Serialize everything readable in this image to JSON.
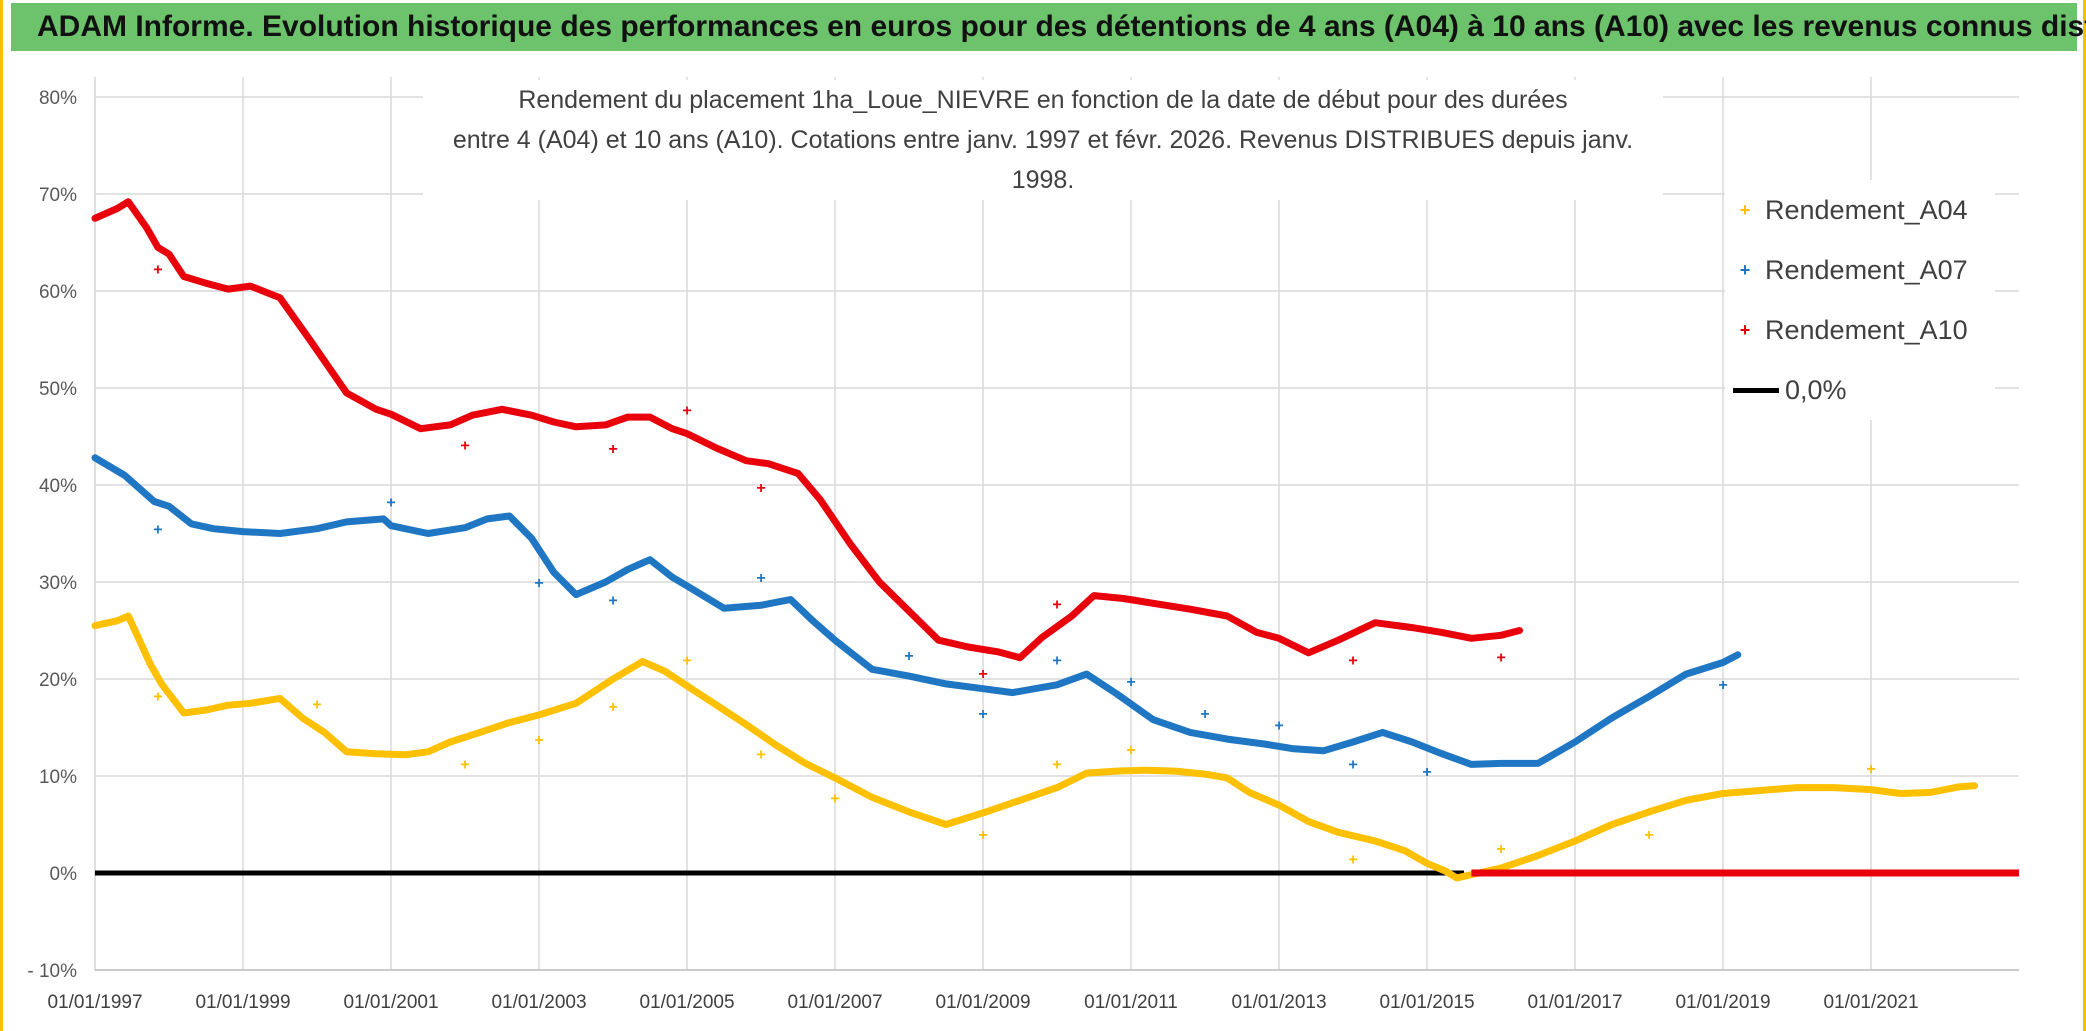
{
  "banner": {
    "title": "ADAM Informe. Evolution historique des performances en euros pour des détentions de 4 ans (A04) à 10 ans (A10) avec les revenus connus distribués"
  },
  "colors": {
    "banner": "#6cc36c",
    "A04": "#ffc000",
    "A07": "#1f77c4",
    "A10": "#e8000b",
    "zero": "#000000",
    "border": "#f2c200"
  },
  "chart_data": {
    "type": "line",
    "title_line1": "Rendement du placement 1ha_Loue_NIEVRE en fonction de la date de début pour des durées",
    "title_line2": "entre 4 (A04) et 10 ans (A10). Cotations entre janv. 1997 et févr. 2026. Revenus DISTRIBUES depuis janv. 1998.",
    "xlabel": "",
    "ylabel": "",
    "xlim": [
      1997.0,
      2023.0
    ],
    "ylim": [
      -10,
      80
    ],
    "y_ticks": [
      -10,
      0,
      10,
      20,
      30,
      40,
      50,
      60,
      70,
      80
    ],
    "y_tick_labels": [
      "- 10%",
      "0%",
      "10%",
      "20%",
      "30%",
      "40%",
      "50%",
      "60%",
      "70%",
      "80%"
    ],
    "x_ticks": [
      1997,
      1999,
      2001,
      2003,
      2005,
      2007,
      2009,
      2011,
      2013,
      2015,
      2017,
      2019,
      2021
    ],
    "x_tick_labels": [
      "01/01/1997",
      "01/01/1999",
      "01/01/2001",
      "01/01/2003",
      "01/01/2005",
      "01/01/2007",
      "01/01/2009",
      "01/01/2011",
      "01/01/2013",
      "01/01/2015",
      "01/01/2017",
      "01/01/2019",
      "01/01/2021"
    ],
    "legend": {
      "A04": "Rendement_A04",
      "A07": "Rendement_A07",
      "A10": "Rendement_A10",
      "zero": "0,0%"
    },
    "legend_position": "top-right",
    "series": [
      {
        "key": "A04",
        "name": "Rendement_A04",
        "points": [
          [
            1997.0,
            25.5
          ],
          [
            1997.3,
            26.0
          ],
          [
            1997.45,
            26.5
          ],
          [
            1997.6,
            24.0
          ],
          [
            1997.75,
            21.5
          ],
          [
            1997.9,
            19.5
          ],
          [
            1998.2,
            16.5
          ],
          [
            1998.5,
            16.8
          ],
          [
            1998.8,
            17.3
          ],
          [
            1999.1,
            17.5
          ],
          [
            1999.5,
            18.0
          ],
          [
            1999.8,
            16.0
          ],
          [
            2000.1,
            14.5
          ],
          [
            2000.4,
            12.5
          ],
          [
            2000.8,
            12.3
          ],
          [
            2001.2,
            12.2
          ],
          [
            2001.5,
            12.5
          ],
          [
            2001.8,
            13.5
          ],
          [
            2002.2,
            14.5
          ],
          [
            2002.6,
            15.5
          ],
          [
            2003.0,
            16.3
          ],
          [
            2003.5,
            17.5
          ],
          [
            2004.0,
            20.0
          ],
          [
            2004.4,
            21.8
          ],
          [
            2004.7,
            20.8
          ],
          [
            2005.0,
            19.3
          ],
          [
            2005.4,
            17.3
          ],
          [
            2005.8,
            15.3
          ],
          [
            2006.2,
            13.2
          ],
          [
            2006.6,
            11.3
          ],
          [
            2007.0,
            9.8
          ],
          [
            2007.5,
            7.8
          ],
          [
            2008.0,
            6.3
          ],
          [
            2008.5,
            5.0
          ],
          [
            2009.0,
            6.2
          ],
          [
            2009.5,
            7.5
          ],
          [
            2010.0,
            8.8
          ],
          [
            2010.4,
            10.3
          ],
          [
            2010.8,
            10.5
          ],
          [
            2011.2,
            10.6
          ],
          [
            2011.6,
            10.5
          ],
          [
            2012.0,
            10.2
          ],
          [
            2012.3,
            9.8
          ],
          [
            2012.6,
            8.3
          ],
          [
            2013.0,
            7.0
          ],
          [
            2013.4,
            5.3
          ],
          [
            2013.8,
            4.2
          ],
          [
            2014.3,
            3.3
          ],
          [
            2014.7,
            2.3
          ],
          [
            2015.0,
            1.0
          ],
          [
            2015.25,
            0.2
          ],
          [
            2015.4,
            -0.5
          ],
          [
            2015.7,
            0.0
          ],
          [
            2016.0,
            0.5
          ],
          [
            2016.5,
            1.8
          ],
          [
            2017.0,
            3.3
          ],
          [
            2017.5,
            5.0
          ],
          [
            2018.0,
            6.3
          ],
          [
            2018.5,
            7.5
          ],
          [
            2019.0,
            8.2
          ],
          [
            2019.5,
            8.5
          ],
          [
            2020.0,
            8.8
          ],
          [
            2020.5,
            8.8
          ],
          [
            2021.0,
            8.6
          ],
          [
            2021.4,
            8.2
          ],
          [
            2021.8,
            8.3
          ],
          [
            2022.2,
            8.9
          ],
          [
            2022.4,
            9.0
          ]
        ],
        "outliers": [
          [
            1997.85,
            18.3
          ],
          [
            2000.0,
            17.5
          ],
          [
            2002.0,
            11.3
          ],
          [
            2003.0,
            13.8
          ],
          [
            2004.0,
            17.2
          ],
          [
            2005.0,
            22.0
          ],
          [
            2006.0,
            12.3
          ],
          [
            2007.0,
            7.8
          ],
          [
            2009.0,
            4.0
          ],
          [
            2010.0,
            11.3
          ],
          [
            2011.0,
            12.8
          ],
          [
            2014.0,
            1.5
          ],
          [
            2016.0,
            2.6
          ],
          [
            2018.0,
            4.0
          ],
          [
            2021.0,
            10.8
          ]
        ]
      },
      {
        "key": "A07",
        "name": "Rendement_A07",
        "points": [
          [
            1997.0,
            42.8
          ],
          [
            1997.4,
            41.0
          ],
          [
            1997.8,
            38.3
          ],
          [
            1998.0,
            37.8
          ],
          [
            1998.3,
            36.0
          ],
          [
            1998.6,
            35.5
          ],
          [
            1999.0,
            35.2
          ],
          [
            1999.5,
            35.0
          ],
          [
            2000.0,
            35.5
          ],
          [
            2000.4,
            36.2
          ],
          [
            2000.9,
            36.5
          ],
          [
            2001.0,
            35.8
          ],
          [
            2001.5,
            35.0
          ],
          [
            2002.0,
            35.6
          ],
          [
            2002.3,
            36.5
          ],
          [
            2002.6,
            36.8
          ],
          [
            2002.9,
            34.5
          ],
          [
            2003.2,
            31.0
          ],
          [
            2003.5,
            28.7
          ],
          [
            2003.9,
            30.0
          ],
          [
            2004.2,
            31.3
          ],
          [
            2004.5,
            32.3
          ],
          [
            2004.8,
            30.5
          ],
          [
            2005.0,
            29.6
          ],
          [
            2005.5,
            27.3
          ],
          [
            2006.0,
            27.6
          ],
          [
            2006.4,
            28.2
          ],
          [
            2006.7,
            26.0
          ],
          [
            2007.0,
            24.0
          ],
          [
            2007.5,
            21.0
          ],
          [
            2008.0,
            20.3
          ],
          [
            2008.5,
            19.5
          ],
          [
            2009.0,
            19.0
          ],
          [
            2009.4,
            18.6
          ],
          [
            2010.0,
            19.4
          ],
          [
            2010.4,
            20.5
          ],
          [
            2010.8,
            18.5
          ],
          [
            2011.3,
            15.8
          ],
          [
            2011.8,
            14.5
          ],
          [
            2012.3,
            13.8
          ],
          [
            2012.8,
            13.3
          ],
          [
            2013.2,
            12.8
          ],
          [
            2013.6,
            12.6
          ],
          [
            2014.0,
            13.5
          ],
          [
            2014.4,
            14.5
          ],
          [
            2014.8,
            13.5
          ],
          [
            2015.2,
            12.3
          ],
          [
            2015.6,
            11.2
          ],
          [
            2016.0,
            11.3
          ],
          [
            2016.5,
            11.3
          ],
          [
            2017.0,
            13.5
          ],
          [
            2017.5,
            16.0
          ],
          [
            2018.0,
            18.2
          ],
          [
            2018.5,
            20.5
          ],
          [
            2019.0,
            21.7
          ],
          [
            2019.2,
            22.5
          ]
        ],
        "outliers": [
          [
            1997.85,
            35.5
          ],
          [
            2001.0,
            38.3
          ],
          [
            2003.0,
            30.0
          ],
          [
            2004.0,
            28.2
          ],
          [
            2006.0,
            30.5
          ],
          [
            2008.0,
            22.5
          ],
          [
            2009.0,
            16.5
          ],
          [
            2010.0,
            22.0
          ],
          [
            2011.0,
            19.8
          ],
          [
            2012.0,
            16.5
          ],
          [
            2013.0,
            15.3
          ],
          [
            2014.0,
            11.3
          ],
          [
            2015.0,
            10.5
          ],
          [
            2019.0,
            19.5
          ]
        ]
      },
      {
        "key": "A10",
        "name": "Rendement_A10",
        "points": [
          [
            1997.0,
            67.5
          ],
          [
            1997.3,
            68.5
          ],
          [
            1997.45,
            69.2
          ],
          [
            1997.7,
            66.5
          ],
          [
            1997.85,
            64.5
          ],
          [
            1998.0,
            63.8
          ],
          [
            1998.2,
            61.5
          ],
          [
            1998.5,
            60.8
          ],
          [
            1998.8,
            60.2
          ],
          [
            1999.1,
            60.5
          ],
          [
            1999.5,
            59.3
          ],
          [
            1999.9,
            55.0
          ],
          [
            2000.4,
            49.5
          ],
          [
            2000.8,
            47.8
          ],
          [
            2001.0,
            47.3
          ],
          [
            2001.4,
            45.8
          ],
          [
            2001.8,
            46.2
          ],
          [
            2002.1,
            47.2
          ],
          [
            2002.5,
            47.8
          ],
          [
            2002.9,
            47.2
          ],
          [
            2003.2,
            46.5
          ],
          [
            2003.5,
            46.0
          ],
          [
            2003.9,
            46.2
          ],
          [
            2004.2,
            47.0
          ],
          [
            2004.5,
            47.0
          ],
          [
            2004.8,
            45.8
          ],
          [
            2005.0,
            45.3
          ],
          [
            2005.4,
            43.8
          ],
          [
            2005.8,
            42.5
          ],
          [
            2006.1,
            42.2
          ],
          [
            2006.5,
            41.2
          ],
          [
            2006.8,
            38.5
          ],
          [
            2007.2,
            34.0
          ],
          [
            2007.6,
            30.0
          ],
          [
            2008.0,
            27.0
          ],
          [
            2008.4,
            24.0
          ],
          [
            2008.8,
            23.3
          ],
          [
            2009.2,
            22.8
          ],
          [
            2009.5,
            22.2
          ],
          [
            2009.8,
            24.3
          ],
          [
            2010.2,
            26.5
          ],
          [
            2010.5,
            28.6
          ],
          [
            2010.9,
            28.3
          ],
          [
            2011.3,
            27.8
          ],
          [
            2011.8,
            27.2
          ],
          [
            2012.3,
            26.5
          ],
          [
            2012.7,
            24.8
          ],
          [
            2013.0,
            24.2
          ],
          [
            2013.4,
            22.7
          ],
          [
            2013.8,
            24.0
          ],
          [
            2014.3,
            25.8
          ],
          [
            2014.8,
            25.3
          ],
          [
            2015.2,
            24.8
          ],
          [
            2015.6,
            24.2
          ],
          [
            2016.0,
            24.5
          ],
          [
            2016.25,
            25.0
          ]
        ],
        "outliers": [
          [
            1997.85,
            62.3
          ],
          [
            2002.0,
            44.2
          ],
          [
            2004.0,
            43.8
          ],
          [
            2005.0,
            47.8
          ],
          [
            2006.0,
            39.8
          ],
          [
            2009.0,
            20.6
          ],
          [
            2010.0,
            27.8
          ],
          [
            2014.0,
            22.0
          ],
          [
            2016.0,
            22.3
          ]
        ],
        "flat_zero_range": [
          2015.6,
          2023.0
        ]
      }
    ],
    "zero_line": {
      "key": "zero",
      "name": "0,0%",
      "from": 1997.0,
      "to": 2015.5,
      "value": 0
    }
  }
}
